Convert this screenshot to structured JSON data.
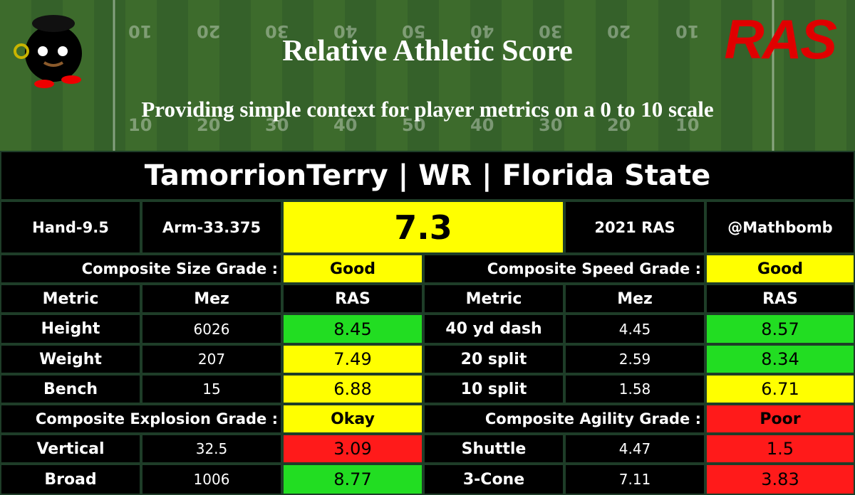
{
  "header": {
    "title": "Relative Athletic Score",
    "subtitle": "Providing simple context for player metrics on a 0 to 10 scale",
    "logo_text": "RAS",
    "yard_numbers": [
      "10",
      "20",
      "30",
      "40",
      "50",
      "40",
      "30",
      "20",
      "10"
    ]
  },
  "player": {
    "name_line": "TamorrionTerry | WR | Florida State"
  },
  "summary": {
    "hand": "Hand-9.5",
    "arm": "Arm-33.375",
    "score": "7.3",
    "year": "2021 RAS",
    "handle": "@Mathbomb"
  },
  "left": [
    {
      "label": "Composite Size Grade :",
      "grade": "Good",
      "grade_color": "#ffff00",
      "columns": [
        "Metric",
        "Mez",
        "RAS"
      ],
      "rows": [
        {
          "metric": "Height",
          "mez": "6026",
          "ras": "8.45",
          "color": "#22dd22"
        },
        {
          "metric": "Weight",
          "mez": "207",
          "ras": "7.49",
          "color": "#ffff00"
        },
        {
          "metric": "Bench",
          "mez": "15",
          "ras": "6.88",
          "color": "#ffff00"
        }
      ]
    },
    {
      "label": "Composite Explosion Grade :",
      "grade": "Okay",
      "grade_color": "#ffff00",
      "rows": [
        {
          "metric": "Vertical",
          "mez": "32.5",
          "ras": "3.09",
          "color": "#ff1a1a"
        },
        {
          "metric": "Broad",
          "mez": "1006",
          "ras": "8.77",
          "color": "#22dd22"
        }
      ]
    }
  ],
  "right": [
    {
      "label": "Composite Speed Grade :",
      "grade": "Good",
      "grade_color": "#ffff00",
      "columns": [
        "Metric",
        "Mez",
        "RAS"
      ],
      "rows": [
        {
          "metric": "40 yd dash",
          "mez": "4.45",
          "ras": "8.57",
          "color": "#22dd22"
        },
        {
          "metric": "20 split",
          "mez": "2.59",
          "ras": "8.34",
          "color": "#22dd22"
        },
        {
          "metric": "10 split",
          "mez": "1.58",
          "ras": "6.71",
          "color": "#ffff00"
        }
      ]
    },
    {
      "label": "Composite Agility Grade :",
      "grade": "Poor",
      "grade_color": "#ff1a1a",
      "rows": [
        {
          "metric": "Shuttle",
          "mez": "4.47",
          "ras": "1.5",
          "color": "#ff1a1a"
        },
        {
          "metric": "3-Cone",
          "mez": "7.11",
          "ras": "3.83",
          "color": "#ff1a1a"
        }
      ]
    }
  ]
}
